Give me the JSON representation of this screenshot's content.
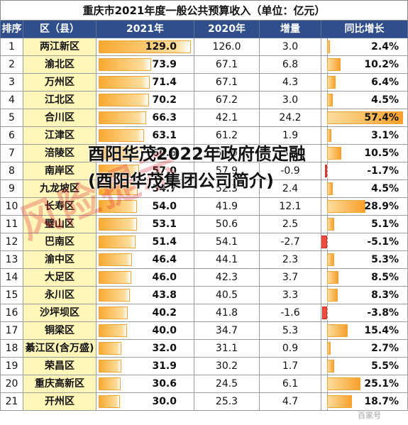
{
  "title": "重庆市2021年度一般公共预算收入（单位：亿元）",
  "headers": [
    "排序",
    "区（县）",
    "2021年",
    "2020年",
    "增量",
    "同比增长"
  ],
  "rows": [
    {
      "rank": "1",
      "district": "两江新区",
      "v2021": "129.0",
      "v2020": "126.0",
      "inc": "3.0",
      "growth": "2.4%",
      "g": 2.4
    },
    {
      "rank": "2",
      "district": "渝北区",
      "v2021": "73.9",
      "v2020": "67.1",
      "inc": "6.8",
      "growth": "10.2%",
      "g": 10.2
    },
    {
      "rank": "3",
      "district": "万州区",
      "v2021": "71.4",
      "v2020": "67.1",
      "inc": "4.3",
      "growth": "6.4%",
      "g": 6.4
    },
    {
      "rank": "4",
      "district": "江北区",
      "v2021": "70.2",
      "v2020": "67.2",
      "inc": "3.0",
      "growth": "4.5%",
      "g": 4.5
    },
    {
      "rank": "5",
      "district": "合川区",
      "v2021": "66.3",
      "v2020": "42.1",
      "inc": "24.2",
      "growth": "57.4%",
      "g": 57.4
    },
    {
      "rank": "6",
      "district": "江津区",
      "v2021": "63.1",
      "v2020": "61.2",
      "inc": "1.9",
      "growth": "3.1%",
      "g": 3.1
    },
    {
      "rank": "7",
      "district": "涪陵区",
      "v2021": "60.6",
      "v2020": "54.9",
      "inc": "5.7",
      "growth": "10.5%",
      "g": 10.5
    },
    {
      "rank": "8",
      "district": "南岸区",
      "v2021": "57.0",
      "v2020": "57.9",
      "inc": "-0.9",
      "growth": "-1.7%",
      "g": -1.7
    },
    {
      "rank": "9",
      "district": "九龙坡区",
      "v2021": "54.7",
      "v2020": "52.3",
      "inc": "2.4",
      "growth": "4.5%",
      "g": 4.5
    },
    {
      "rank": "10",
      "district": "长寿区",
      "v2021": "54.0",
      "v2020": "41.9",
      "inc": "12.1",
      "growth": "28.9%",
      "g": 28.9
    },
    {
      "rank": "11",
      "district": "璧山区",
      "v2021": "53.1",
      "v2020": "50.6",
      "inc": "2.5",
      "growth": "5.1%",
      "g": 5.1
    },
    {
      "rank": "12",
      "district": "巴南区",
      "v2021": "51.4",
      "v2020": "54.1",
      "inc": "-2.7",
      "growth": "-5.1%",
      "g": -5.1
    },
    {
      "rank": "13",
      "district": "渝中区",
      "v2021": "46.4",
      "v2020": "44.1",
      "inc": "2.3",
      "growth": "5.3%",
      "g": 5.3
    },
    {
      "rank": "14",
      "district": "大足区",
      "v2021": "46.0",
      "v2020": "42.3",
      "inc": "3.7",
      "growth": "8.5%",
      "g": 8.5
    },
    {
      "rank": "15",
      "district": "永川区",
      "v2021": "43.8",
      "v2020": "40.5",
      "inc": "3.3",
      "growth": "8.3%",
      "g": 8.3
    },
    {
      "rank": "16",
      "district": "沙坪坝区",
      "v2021": "40.2",
      "v2020": "41.8",
      "inc": "-1.6",
      "growth": "-3.8%",
      "g": -3.8
    },
    {
      "rank": "17",
      "district": "铜梁区",
      "v2021": "40.0",
      "v2020": "34.7",
      "inc": "5.3",
      "growth": "15.4%",
      "g": 15.4
    },
    {
      "rank": "18",
      "district": "綦江区(含万盛)",
      "v2021": "32.0",
      "v2020": "31.1",
      "inc": "0.9",
      "growth": "2.7%",
      "g": 2.7
    },
    {
      "rank": "19",
      "district": "荣昌区",
      "v2021": "31.9",
      "v2020": "30.2",
      "inc": "1.7",
      "growth": "5.5%",
      "g": 5.5
    },
    {
      "rank": "20",
      "district": "重庆高新区",
      "v2021": "30.6",
      "v2020": "24.5",
      "inc": "6.1",
      "growth": "25.1%",
      "g": 25.1
    },
    {
      "rank": "21",
      "district": "开州区",
      "v2021": "30.0",
      "v2020": "25.3",
      "inc": "4.7",
      "growth": "18.7%",
      "g": 18.7
    }
  ],
  "overlay_text": "酉阳华茂2022年政府债定融(酉阳华茂集团公司简介)",
  "stamp_text": "风险提示",
  "watermark": "百家号"
}
